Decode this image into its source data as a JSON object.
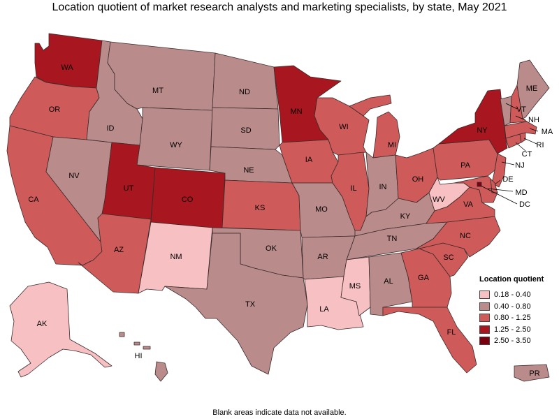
{
  "title": "Location quotient of market research analysts and marketing specialists, by state, May 2021",
  "footnote": "Blank areas indicate data not available.",
  "legend": {
    "title": "Location quotient",
    "items": [
      {
        "label": "0.18 - 0.40",
        "color": "#f7c0c3"
      },
      {
        "label": "0.40 - 0.80",
        "color": "#b98b8b"
      },
      {
        "label": "0.80 - 1.25",
        "color": "#cf5a5a"
      },
      {
        "label": "1.25 - 2.50",
        "color": "#a8171f"
      },
      {
        "label": "2.50 - 3.50",
        "color": "#7a0010"
      }
    ]
  },
  "states": [
    {
      "abbr": "WA",
      "class": "1.25 - 2.50"
    },
    {
      "abbr": "OR",
      "class": "0.80 - 1.25"
    },
    {
      "abbr": "CA",
      "class": "0.80 - 1.25"
    },
    {
      "abbr": "ID",
      "class": "0.40 - 0.80"
    },
    {
      "abbr": "NV",
      "class": "0.40 - 0.80"
    },
    {
      "abbr": "MT",
      "class": "0.40 - 0.80"
    },
    {
      "abbr": "WY",
      "class": "0.40 - 0.80"
    },
    {
      "abbr": "UT",
      "class": "1.25 - 2.50"
    },
    {
      "abbr": "CO",
      "class": "1.25 - 2.50"
    },
    {
      "abbr": "AZ",
      "class": "0.80 - 1.25"
    },
    {
      "abbr": "NM",
      "class": "0.18 - 0.40"
    },
    {
      "abbr": "ND",
      "class": "0.40 - 0.80"
    },
    {
      "abbr": "SD",
      "class": "0.40 - 0.80"
    },
    {
      "abbr": "NE",
      "class": "0.40 - 0.80"
    },
    {
      "abbr": "KS",
      "class": "0.80 - 1.25"
    },
    {
      "abbr": "OK",
      "class": "0.40 - 0.80"
    },
    {
      "abbr": "TX",
      "class": "0.40 - 0.80"
    },
    {
      "abbr": "MN",
      "class": "1.25 - 2.50"
    },
    {
      "abbr": "IA",
      "class": "0.80 - 1.25"
    },
    {
      "abbr": "MO",
      "class": "0.40 - 0.80"
    },
    {
      "abbr": "AR",
      "class": "0.40 - 0.80"
    },
    {
      "abbr": "LA",
      "class": "0.18 - 0.40"
    },
    {
      "abbr": "WI",
      "class": "0.80 - 1.25"
    },
    {
      "abbr": "IL",
      "class": "0.80 - 1.25"
    },
    {
      "abbr": "MI",
      "class": "0.80 - 1.25"
    },
    {
      "abbr": "IN",
      "class": "0.40 - 0.80"
    },
    {
      "abbr": "OH",
      "class": "0.80 - 1.25"
    },
    {
      "abbr": "KY",
      "class": "0.40 - 0.80"
    },
    {
      "abbr": "TN",
      "class": "0.40 - 0.80"
    },
    {
      "abbr": "MS",
      "class": "0.18 - 0.40"
    },
    {
      "abbr": "AL",
      "class": "0.40 - 0.80"
    },
    {
      "abbr": "GA",
      "class": "0.80 - 1.25"
    },
    {
      "abbr": "FL",
      "class": "0.80 - 1.25"
    },
    {
      "abbr": "SC",
      "class": "0.80 - 1.25"
    },
    {
      "abbr": "NC",
      "class": "0.80 - 1.25"
    },
    {
      "abbr": "VA",
      "class": "0.80 - 1.25"
    },
    {
      "abbr": "WV",
      "class": "0.18 - 0.40"
    },
    {
      "abbr": "PA",
      "class": "0.80 - 1.25"
    },
    {
      "abbr": "NY",
      "class": "1.25 - 2.50"
    },
    {
      "abbr": "NJ",
      "class": "0.80 - 1.25"
    },
    {
      "abbr": "DE",
      "class": "0.80 - 1.25"
    },
    {
      "abbr": "MD",
      "class": "0.80 - 1.25"
    },
    {
      "abbr": "DC",
      "class": "2.50 - 3.50"
    },
    {
      "abbr": "CT",
      "class": "0.80 - 1.25"
    },
    {
      "abbr": "RI",
      "class": "0.80 - 1.25"
    },
    {
      "abbr": "MA",
      "class": "0.80 - 1.25"
    },
    {
      "abbr": "VT",
      "class": "0.40 - 0.80"
    },
    {
      "abbr": "NH",
      "class": "0.80 - 1.25"
    },
    {
      "abbr": "ME",
      "class": "0.40 - 0.80"
    },
    {
      "abbr": "AK",
      "class": "0.18 - 0.40"
    },
    {
      "abbr": "HI",
      "class": "0.40 - 0.80"
    },
    {
      "abbr": "PR",
      "class": "0.40 - 0.80"
    }
  ]
}
